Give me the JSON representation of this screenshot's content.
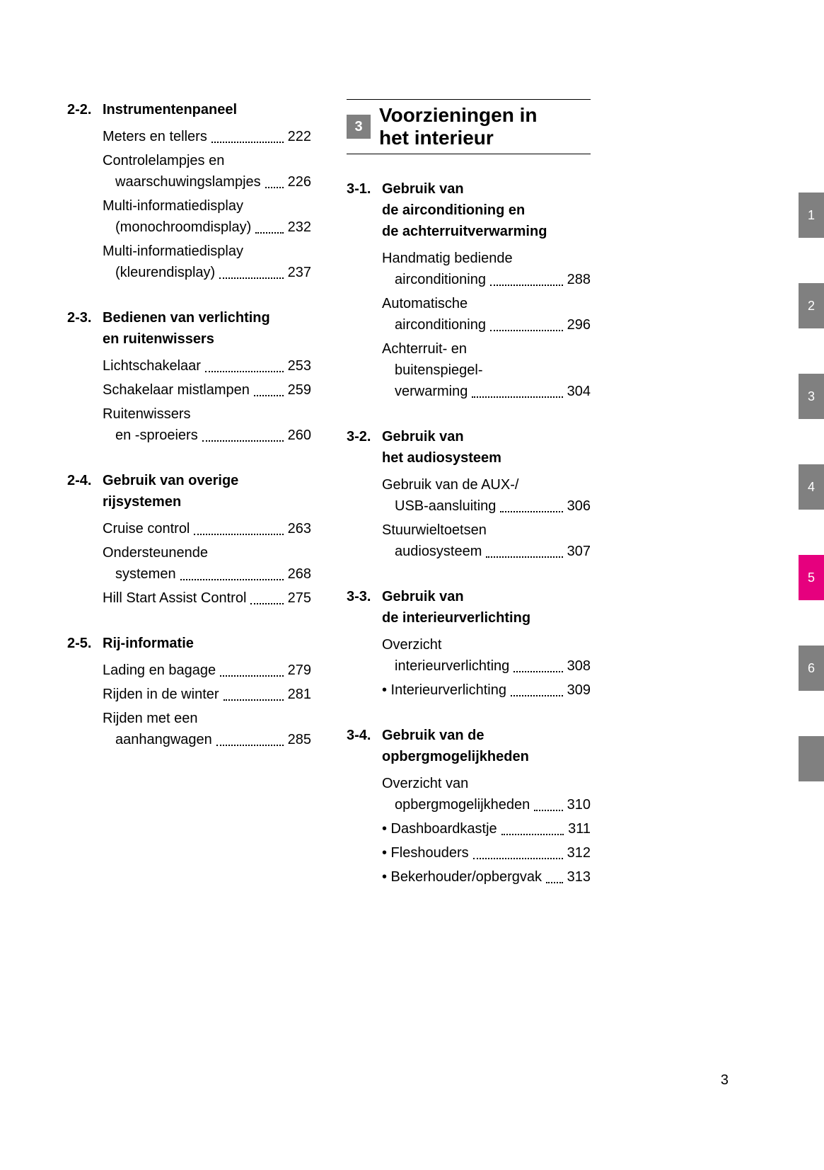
{
  "page_number": "3",
  "left_column": [
    {
      "num": "2-2.",
      "title": [
        "Instrumentenpaneel"
      ],
      "entries": [
        {
          "lines": [
            "Meters en tellers"
          ],
          "page": "222"
        },
        {
          "lines": [
            "Controlelampjes en",
            "waarschuwingslampjes"
          ],
          "page": "226"
        },
        {
          "lines": [
            "Multi-informatiedisplay",
            "(monochroomdisplay)"
          ],
          "page": "232"
        },
        {
          "lines": [
            "Multi-informatiedisplay",
            "(kleurendisplay)"
          ],
          "page": "237"
        }
      ]
    },
    {
      "num": "2-3.",
      "title": [
        "Bedienen van verlichting",
        "en ruitenwissers"
      ],
      "entries": [
        {
          "lines": [
            "Lichtschakelaar"
          ],
          "page": "253"
        },
        {
          "lines": [
            "Schakelaar mistlampen"
          ],
          "page": "259"
        },
        {
          "lines": [
            "Ruitenwissers",
            "en -sproeiers"
          ],
          "page": "260"
        }
      ]
    },
    {
      "num": "2-4.",
      "title": [
        "Gebruik van overige",
        "rijsystemen"
      ],
      "entries": [
        {
          "lines": [
            "Cruise control"
          ],
          "page": "263"
        },
        {
          "lines": [
            "Ondersteunende",
            "systemen"
          ],
          "page": "268"
        },
        {
          "lines": [
            "Hill Start Assist Control"
          ],
          "page": "275"
        }
      ]
    },
    {
      "num": "2-5.",
      "title": [
        "Rij-informatie"
      ],
      "entries": [
        {
          "lines": [
            "Lading en bagage"
          ],
          "page": "279"
        },
        {
          "lines": [
            "Rijden in de winter"
          ],
          "page": "281"
        },
        {
          "lines": [
            "Rijden met een",
            "aanhangwagen"
          ],
          "page": "285"
        }
      ]
    }
  ],
  "chapter": {
    "badge": "3",
    "title_lines": [
      "Voorzieningen in",
      "het interieur"
    ]
  },
  "right_column": [
    {
      "num": "3-1.",
      "title": [
        "Gebruik van",
        "de airconditioning en",
        "de achterruitverwarming"
      ],
      "entries": [
        {
          "lines": [
            "Handmatig bediende",
            "airconditioning"
          ],
          "page": "288"
        },
        {
          "lines": [
            "Automatische",
            "airconditioning"
          ],
          "page": "296"
        },
        {
          "lines": [
            "Achterruit- en",
            "buitenspiegel-",
            "verwarming"
          ],
          "page": "304"
        }
      ]
    },
    {
      "num": "3-2.",
      "title": [
        "Gebruik van",
        "het audiosysteem"
      ],
      "entries": [
        {
          "lines": [
            "Gebruik van de AUX-/",
            "USB-aansluiting"
          ],
          "page": "306"
        },
        {
          "lines": [
            "Stuurwieltoetsen",
            "audiosysteem"
          ],
          "page": "307"
        }
      ]
    },
    {
      "num": "3-3.",
      "title": [
        "Gebruik van",
        "de interieurverlichting"
      ],
      "entries": [
        {
          "lines": [
            "Overzicht",
            "interieurverlichting"
          ],
          "page": "308"
        },
        {
          "lines": [
            "Interieurverlichting"
          ],
          "page": "309",
          "bullet": true
        }
      ]
    },
    {
      "num": "3-4.",
      "title": [
        "Gebruik van de",
        "opbergmogelijkheden"
      ],
      "entries": [
        {
          "lines": [
            "Overzicht van",
            "opbergmogelijkheden"
          ],
          "page": "310"
        },
        {
          "lines": [
            "Dashboardkastje"
          ],
          "page": "311",
          "bullet": true
        },
        {
          "lines": [
            "Fleshouders"
          ],
          "page": "312",
          "bullet": true
        },
        {
          "lines": [
            "Bekerhouder/opbergvak"
          ],
          "page": "313",
          "bullet": true
        }
      ]
    }
  ],
  "tabs": [
    {
      "label": "1",
      "bg": "#808080"
    },
    {
      "label": "2",
      "bg": "#808080"
    },
    {
      "label": "3",
      "bg": "#808080"
    },
    {
      "label": "4",
      "bg": "#808080"
    },
    {
      "label": "5",
      "bg": "#e6007e"
    },
    {
      "label": "6",
      "bg": "#808080"
    },
    {
      "label": "",
      "bg": "#808080"
    }
  ]
}
